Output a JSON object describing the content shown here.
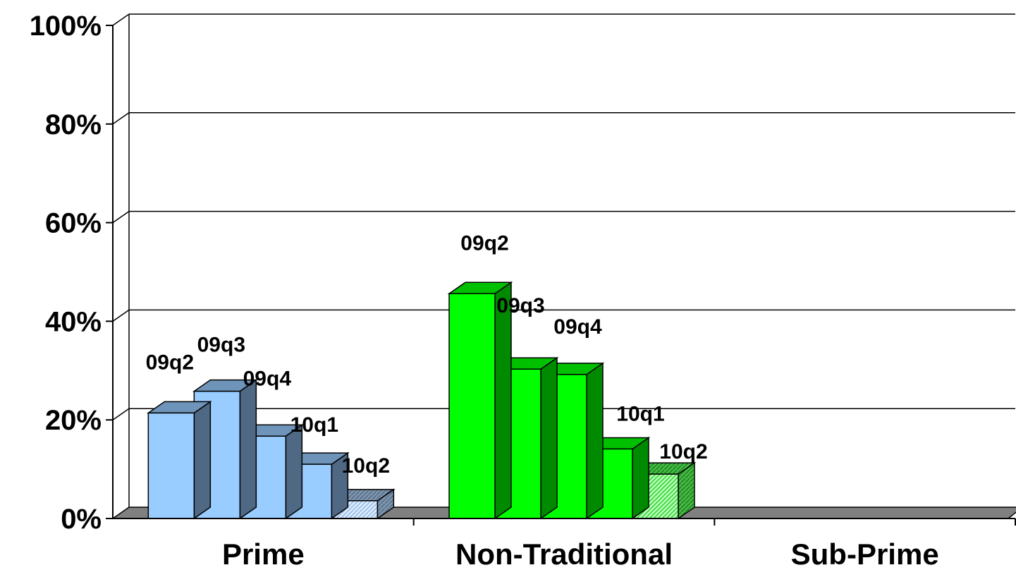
{
  "chart_data": {
    "type": "bar",
    "three_d": true,
    "categories": [
      "Prime",
      "Non-Traditional",
      "Sub-Prime"
    ],
    "series": [
      {
        "values": [
          21.4,
          45.6,
          null
        ]
      },
      {
        "values": [
          25.8,
          30.3,
          null
        ]
      },
      {
        "values": [
          16.7,
          29.2,
          null
        ]
      },
      {
        "values": [
          11.0,
          14.1,
          null
        ]
      },
      {
        "values": [
          3.6,
          9.0,
          null
        ]
      }
    ],
    "point_labels": [
      [
        "09q2",
        "09q3",
        "09q4",
        "10q1",
        "10q2"
      ],
      [
        "09q2",
        "09q3",
        "09q4",
        "10q1",
        "10q2"
      ],
      []
    ],
    "y_ticks": [
      "0%",
      "20%",
      "40%",
      "60%",
      "80%",
      "100%"
    ],
    "ylim": [
      0,
      100
    ],
    "grid": true,
    "colors": {
      "Prime": {
        "front": "#99ccff",
        "top": "#6e95b9",
        "side": "#4f6884"
      },
      "Non-Traditional": {
        "front": "#00ff00",
        "top": "#00c000",
        "side": "#008a00"
      },
      "floor": "#808080"
    }
  }
}
